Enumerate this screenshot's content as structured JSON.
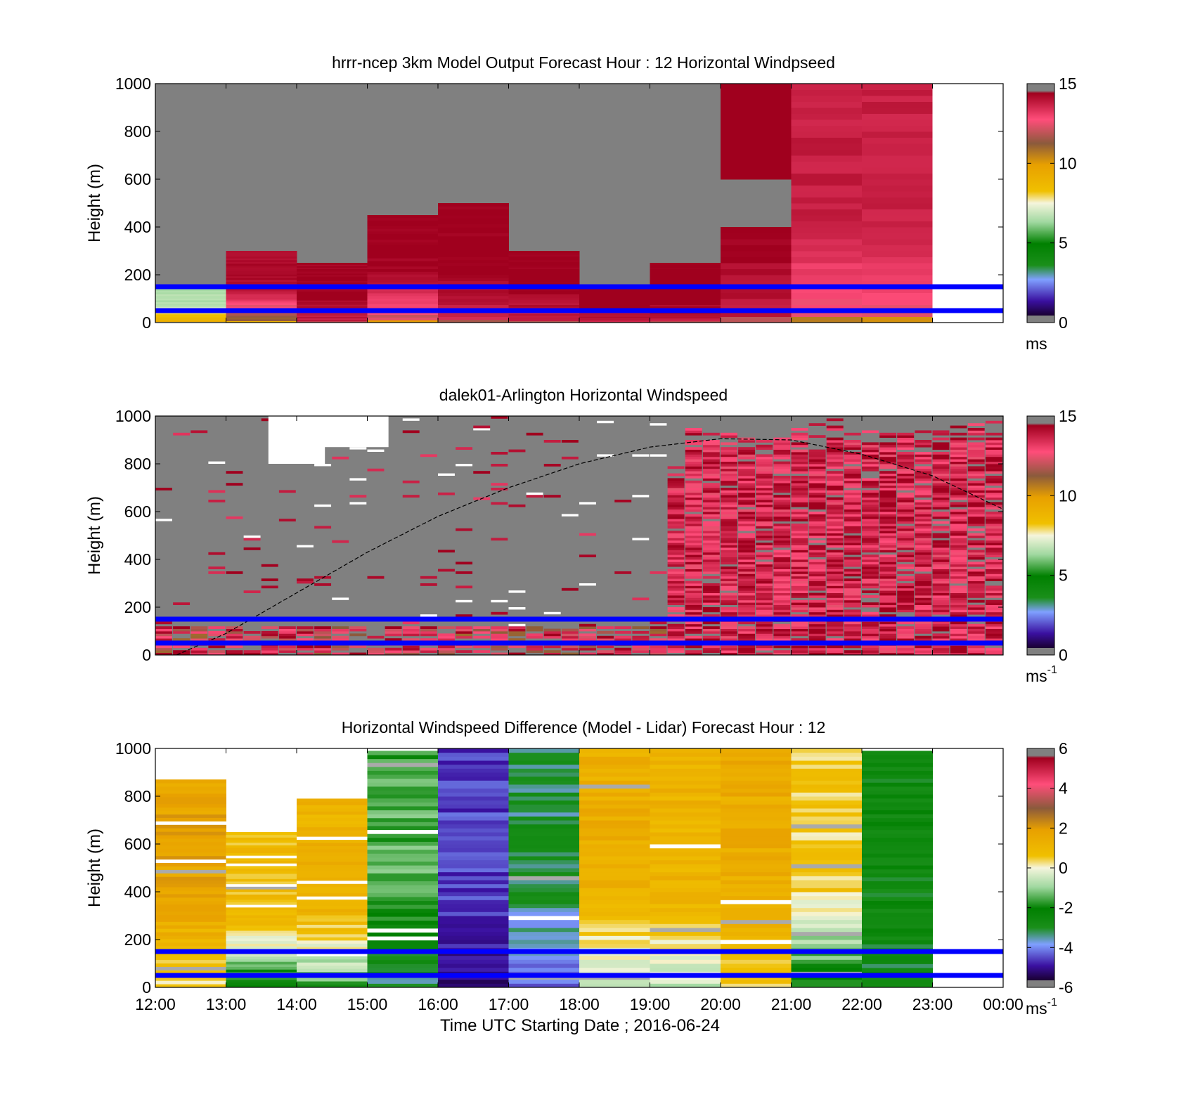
{
  "figure": {
    "xlabel": "Time UTC  Starting Date ; 2016-06-24",
    "x_ticks": [
      "12:00",
      "13:00",
      "14:00",
      "15:00",
      "16:00",
      "17:00",
      "18:00",
      "19:00",
      "20:00",
      "21:00",
      "22:00",
      "23:00",
      "00:00"
    ]
  },
  "chart_data": [
    {
      "type": "heatmap",
      "title": "hrrr-ncep 3km Model Output   Forecast Hour : 12 Horizontal Windpseed",
      "ylabel": "Height (m)",
      "ylim": [
        0,
        1000
      ],
      "y_ticks": [
        0,
        200,
        400,
        600,
        800,
        1000
      ],
      "x_hours_start": 12,
      "x_hours_end": 24,
      "colorbar": {
        "min": 0,
        "max": 15,
        "ticks": [
          0,
          5,
          10,
          15
        ],
        "unit": "ms",
        "colormap": "windspeed",
        "stops": [
          "#808080",
          "#1a0033",
          "#3a10a0",
          "#7fa0ff",
          "#008000",
          "#a0d8a0",
          "#f5f5dc",
          "#f0c000",
          "#e8a000",
          "#8b5a3c",
          "#ff4d7a",
          "#a0001e",
          "#808080"
        ]
      },
      "background_color": "#808080",
      "reference_lines_m": [
        150,
        50
      ],
      "reference_line_color": "#0000ff",
      "columns": [
        {
          "t0": 12,
          "t1": 13,
          "top": 160,
          "max_top_value": 6.5,
          "low_value": 9.5
        },
        {
          "t0": 13,
          "t1": 14,
          "top": 300,
          "max_top_value": 14.2,
          "low_value": 11
        },
        {
          "t0": 14,
          "t1": 15,
          "top": 250,
          "max_top_value": 14.5,
          "low_value": 13.8
        },
        {
          "t0": 15,
          "t1": 16,
          "top": 450,
          "max_top_value": 14.5,
          "low_value": 12
        },
        {
          "t0": 16,
          "t1": 17,
          "top": 500,
          "max_top_value": 14.6,
          "low_value": 13.5
        },
        {
          "t0": 17,
          "t1": 18,
          "top": 300,
          "max_top_value": 14.6,
          "low_value": 13.6
        },
        {
          "t0": 18,
          "t1": 19,
          "top": 150,
          "max_top_value": 14.6,
          "low_value": 13.8
        },
        {
          "t0": 19,
          "t1": 20,
          "top": 250,
          "max_top_value": 14.7,
          "low_value": 13.8
        },
        {
          "t0": 20,
          "t1": 21,
          "top": 1000,
          "max_top_value": 14.8,
          "low_value": 13.8,
          "gap": [
            400,
            600
          ]
        },
        {
          "t0": 21,
          "t1": 22,
          "top": 1000,
          "max_top_value": 13.8,
          "low_value": 12.5
        },
        {
          "t0": 22,
          "t1": 23,
          "top": 1000,
          "max_top_value": 13.8,
          "low_value": 12.5
        }
      ],
      "white_after_hour": 23
    },
    {
      "type": "heatmap",
      "title": "dalek01-Arlington  Horizontal Windspeed",
      "ylabel": "Height (m)",
      "ylim": [
        0,
        1000
      ],
      "y_ticks": [
        0,
        200,
        400,
        600,
        800,
        1000
      ],
      "x_hours_start": 12,
      "x_hours_end": 24,
      "colorbar": {
        "min": 0,
        "max": 15,
        "ticks": [
          0,
          5,
          10,
          15
        ],
        "unit": "ms",
        "unit_superscript": "-1",
        "colormap": "windspeed"
      },
      "background_color": "#808080",
      "reference_lines_m": [
        150,
        50
      ],
      "reference_line_color": "#0000ff",
      "boundary_layer_curve": {
        "x": [
          12.3,
          13,
          14,
          15,
          16,
          17,
          18,
          19,
          20,
          21,
          22,
          23,
          24
        ],
        "y": [
          0,
          90,
          260,
          430,
          580,
          700,
          800,
          870,
          905,
          900,
          840,
          750,
          610
        ]
      },
      "dense_from_hour": 19.1,
      "dense_tops": [
        870,
        1000,
        980,
        1000,
        1000,
        950,
        1000,
        1000,
        1000,
        1000,
        1000,
        980,
        1000,
        1000,
        1000,
        1000,
        1000,
        1000,
        1000,
        1000,
        1000,
        1000
      ]
    },
    {
      "type": "heatmap",
      "title": "Horizontal Windspeed Difference (Model - Lidar) Forecast Hour : 12",
      "ylabel": "Height (m)",
      "ylim": [
        0,
        1000
      ],
      "y_ticks": [
        0,
        200,
        400,
        600,
        800,
        1000
      ],
      "x_hours_start": 12,
      "x_hours_end": 24,
      "colorbar": {
        "min": -6,
        "max": 6,
        "ticks": [
          -6,
          -4,
          -2,
          0,
          2,
          4,
          6
        ],
        "unit": "ms",
        "unit_superscript": "-1",
        "colormap": "difference"
      },
      "reference_lines_m": [
        150,
        50
      ],
      "reference_line_color": "#0000ff",
      "columns": [
        {
          "t0": 12,
          "t1": 13,
          "top": 870,
          "base_value": 1.8,
          "low_value": 0.3
        },
        {
          "t0": 13,
          "t1": 14,
          "top": 650,
          "base_value": 0.8,
          "low_value": -2.4
        },
        {
          "t0": 14,
          "t1": 15,
          "top": 790,
          "base_value": 1.2,
          "low_value": -1.5
        },
        {
          "t0": 15,
          "t1": 16,
          "top": 990,
          "base_value": -1.5,
          "low_value": -3.2
        },
        {
          "t0": 16,
          "t1": 17,
          "top": 1000,
          "base_value": -4.4,
          "low_value": -5.2
        },
        {
          "t0": 17,
          "t1": 18,
          "top": 1000,
          "base_value": -3.0,
          "low_value": -4.0
        },
        {
          "t0": 18,
          "t1": 19,
          "top": 1000,
          "base_value": 1.4,
          "low_value": -0.6
        },
        {
          "t0": 19,
          "t1": 20,
          "top": 1000,
          "base_value": 1.2,
          "low_value": -0.5
        },
        {
          "t0": 20,
          "t1": 21,
          "top": 1000,
          "base_value": 1.5,
          "low_value": 0.6
        },
        {
          "t0": 21,
          "t1": 22,
          "top": 1000,
          "base_value": 0.5,
          "low_value": -2.2
        },
        {
          "t0": 22,
          "t1": 23,
          "top": 990,
          "base_value": -2.6,
          "low_value": -2.8
        }
      ],
      "white_after_hour": 23
    }
  ]
}
